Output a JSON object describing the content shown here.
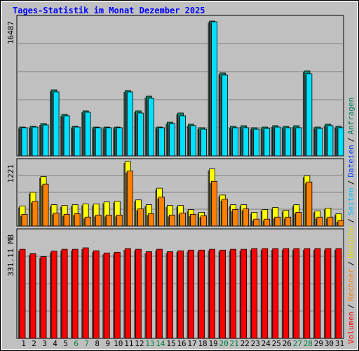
{
  "title": "Tages-Statistik im Monat Dezember 2025",
  "categories": [
    "1",
    "2",
    "3",
    "4",
    "5",
    "6",
    "7",
    "8",
    "9",
    "10",
    "11",
    "12",
    "13",
    "14",
    "15",
    "16",
    "17",
    "18",
    "19",
    "20",
    "21",
    "22",
    "23",
    "24",
    "25",
    "26",
    "27",
    "28",
    "29",
    "30",
    "31"
  ],
  "category_colors": [
    "#000000",
    "#000000",
    "#000000",
    "#000000",
    "#000000",
    "#008040",
    "#008040",
    "#000000",
    "#000000",
    "#000000",
    "#000000",
    "#000000",
    "#008040",
    "#008040",
    "#000000",
    "#000000",
    "#000000",
    "#000000",
    "#000000",
    "#008040",
    "#008040",
    "#000000",
    "#000000",
    "#000000",
    "#000000",
    "#000000",
    "#008040",
    "#008040",
    "#000000",
    "#000000",
    "#000000"
  ],
  "legend_separator": "/",
  "legend": [
    {
      "name": "Volumen",
      "color": "#ff0000"
    },
    {
      "name": "Rechner",
      "color": "#ff8000"
    },
    {
      "name": "Besuche",
      "color": "#e0e000"
    },
    {
      "name": "Seiten",
      "color": "#00c0ff"
    },
    {
      "name": "Dateien",
      "color": "#0040ff"
    },
    {
      "name": "Anfragen",
      "color": "#008060"
    }
  ],
  "chart_data": [
    {
      "type": "bar",
      "max_label": "16487",
      "ylim": [
        0,
        17174
      ],
      "series": [
        {
          "color": "#008a6c",
          "values": [
            3520,
            3610,
            3950,
            8075,
            5070,
            3610,
            5500,
            3520,
            3520,
            3520,
            7990,
            5500,
            7300,
            3520,
            4120,
            5240,
            3870,
            3440,
            16487,
            10140,
            3610,
            3690,
            3440,
            3520,
            3690,
            3610,
            3690,
            10390,
            3520,
            3870,
            3610
          ]
        },
        {
          "color": "#00e0ff",
          "values": [
            3440,
            3520,
            3780,
            7820,
            4900,
            3520,
            5330,
            3440,
            3440,
            3440,
            7820,
            5240,
            7040,
            3440,
            3950,
            4900,
            3700,
            3260,
            16400,
            9880,
            3440,
            3440,
            3260,
            3350,
            3520,
            3440,
            3440,
            10050,
            3350,
            3700,
            3440
          ]
        }
      ]
    },
    {
      "type": "bar",
      "max_label": "1221",
      "ylim": [
        0,
        1273
      ],
      "series": [
        {
          "color": "#ffff00",
          "values": [
            377,
            637,
            936,
            403,
            390,
            403,
            416,
            416,
            455,
            468,
            1221,
            494,
            403,
            715,
            390,
            390,
            312,
            260,
            1079,
            585,
            403,
            403,
            260,
            312,
            351,
            299,
            403,
            949,
            286,
            338,
            234
          ]
        },
        {
          "color": "#ff8000",
          "values": [
            221,
            468,
            793,
            247,
            221,
            234,
            169,
            208,
            208,
            208,
            1040,
            325,
            234,
            546,
            208,
            247,
            221,
            195,
            845,
            507,
            312,
            325,
            130,
            130,
            169,
            169,
            260,
            832,
            169,
            169,
            104
          ]
        }
      ]
    },
    {
      "type": "bar",
      "max_label": "331.11 MB",
      "ylim": [
        0,
        400.5
      ],
      "series": [
        {
          "color": "#ff0000",
          "values": [
            325.8,
            309.8,
            299,
            319,
            325.8,
            325.8,
            331.11,
            320.4,
            312.4,
            315,
            328.4,
            325.8,
            317,
            325.8,
            317,
            320.4,
            322.8,
            322.8,
            325.8,
            322.8,
            325.8,
            325.8,
            328.4,
            328.4,
            328.4,
            328.4,
            328.4,
            328.4,
            328.4,
            328.4,
            328.4
          ]
        }
      ]
    }
  ]
}
